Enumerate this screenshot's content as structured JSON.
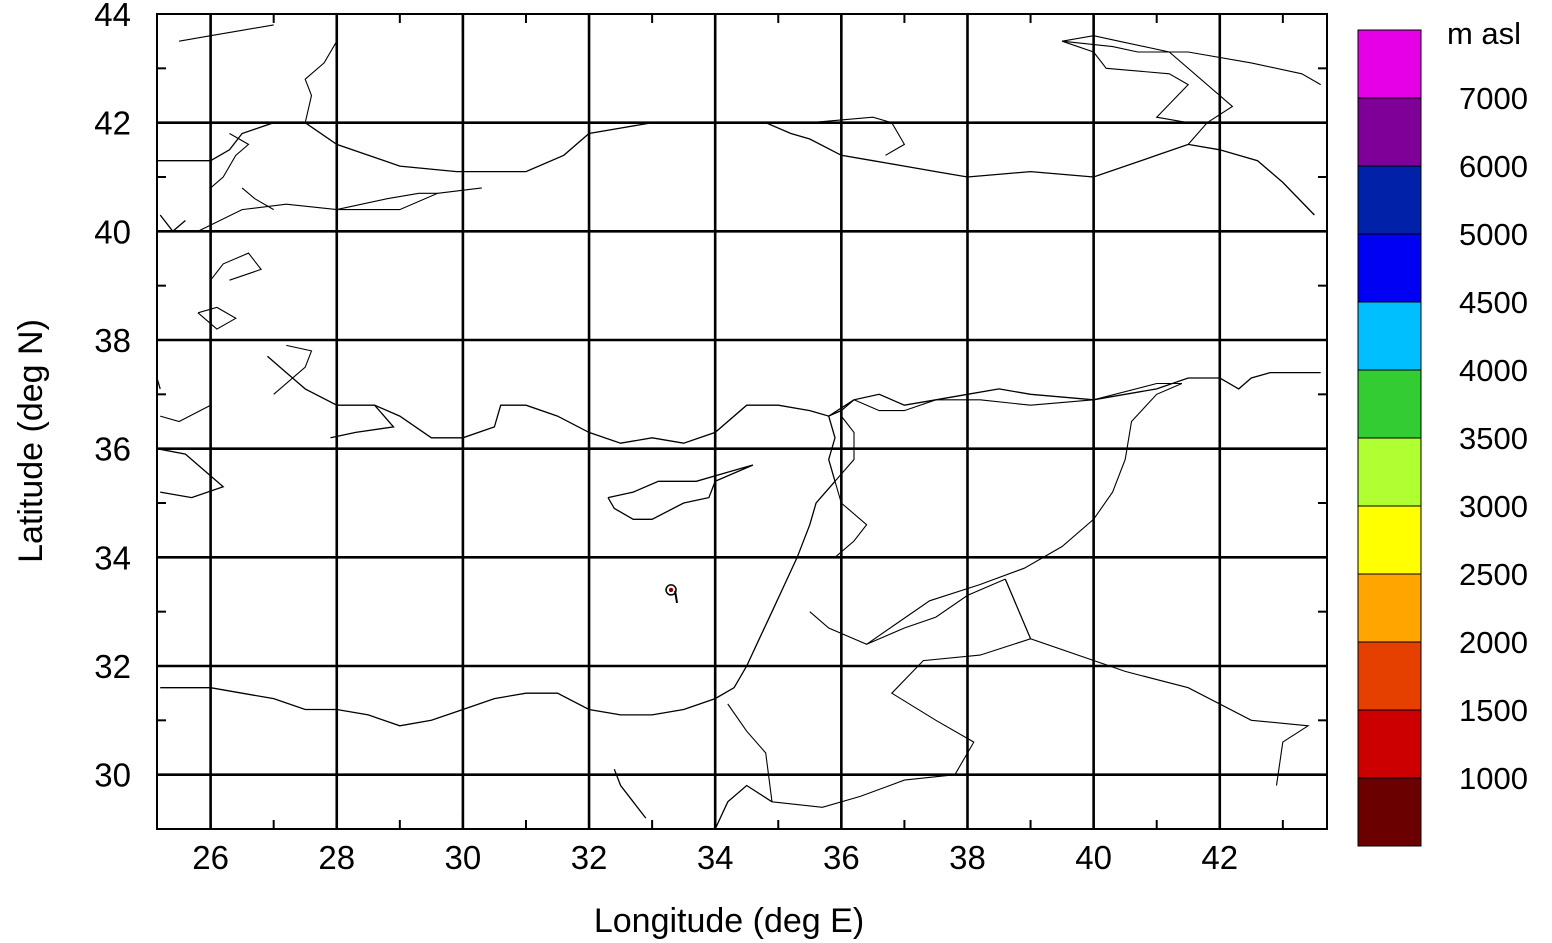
{
  "axes": {
    "xlabel": "Longitude (deg E)",
    "ylabel": "Latitude (deg N)",
    "xlim": [
      25.15,
      43.7
    ],
    "ylim": [
      29.0,
      44.0
    ],
    "x_major_ticks": [
      26,
      28,
      30,
      32,
      34,
      36,
      38,
      40,
      42
    ],
    "y_major_ticks": [
      30,
      32,
      34,
      36,
      38,
      40,
      42,
      44
    ],
    "x_minor_ticks": [
      27,
      29,
      31,
      33,
      35,
      37,
      39,
      41,
      43
    ],
    "y_minor_ticks": [
      31,
      33,
      35,
      37,
      39,
      41,
      43
    ],
    "grid_lons": [
      26,
      28,
      30,
      32,
      34,
      36,
      38,
      40,
      42
    ],
    "grid_lats": [
      30,
      32,
      34,
      36,
      38,
      40,
      42
    ]
  },
  "marker": {
    "lon": 33.3,
    "lat": 33.4,
    "color": "#8b0000"
  },
  "legend": {
    "title": "m asl",
    "labels": [
      "7000",
      "6000",
      "5000",
      "4500",
      "4000",
      "3500",
      "3000",
      "2500",
      "2000",
      "1500",
      "1000"
    ],
    "colors": [
      "#e600e6",
      "#7f0099",
      "#0021a8",
      "#0000f2",
      "#00bfff",
      "#33cc33",
      "#b0ff33",
      "#ffff00",
      "#ffa500",
      "#e64000",
      "#cc0000",
      "#6b0000"
    ]
  },
  "coastlines": [
    [
      [
        25.2,
        40.3
      ],
      [
        25.4,
        40.0
      ],
      [
        25.6,
        40.2
      ]
    ],
    [
      [
        25.1,
        41.3
      ],
      [
        26.0,
        41.3
      ],
      [
        26.3,
        41.5
      ],
      [
        26.5,
        41.8
      ],
      [
        27.0,
        42.0
      ],
      [
        27.5,
        42.0
      ],
      [
        28.0,
        41.6
      ],
      [
        29.0,
        41.2
      ],
      [
        29.9,
        41.1
      ],
      [
        31.0,
        41.1
      ],
      [
        31.6,
        41.4
      ],
      [
        32.0,
        41.8
      ],
      [
        33.0,
        42.0
      ],
      [
        34.0,
        42.0
      ],
      [
        34.8,
        42.0
      ],
      [
        35.2,
        41.8
      ],
      [
        35.5,
        41.7
      ],
      [
        36.0,
        41.4
      ],
      [
        36.5,
        41.3
      ],
      [
        37.0,
        41.2
      ],
      [
        37.5,
        41.1
      ],
      [
        38.0,
        41.0
      ],
      [
        39.0,
        41.1
      ],
      [
        40.0,
        41.0
      ],
      [
        41.0,
        41.4
      ],
      [
        41.5,
        41.6
      ],
      [
        42.0,
        41.5
      ],
      [
        42.6,
        41.3
      ],
      [
        43.0,
        40.9
      ],
      [
        43.5,
        40.3
      ]
    ],
    [
      [
        25.1,
        37.3
      ],
      [
        25.2,
        37.1
      ]
    ],
    [
      [
        26.9,
        37.7
      ],
      [
        27.2,
        37.4
      ],
      [
        27.5,
        37.1
      ],
      [
        28.0,
        36.8
      ],
      [
        28.6,
        36.8
      ],
      [
        29.0,
        36.6
      ],
      [
        29.5,
        36.2
      ],
      [
        30.0,
        36.2
      ],
      [
        30.5,
        36.4
      ],
      [
        30.6,
        36.8
      ],
      [
        31.0,
        36.8
      ],
      [
        31.5,
        36.6
      ],
      [
        32.0,
        36.3
      ],
      [
        32.5,
        36.1
      ],
      [
        33.0,
        36.2
      ],
      [
        33.5,
        36.1
      ],
      [
        34.0,
        36.3
      ],
      [
        34.5,
        36.8
      ],
      [
        35.0,
        36.8
      ],
      [
        35.5,
        36.7
      ],
      [
        35.8,
        36.6
      ],
      [
        36.0,
        36.7
      ],
      [
        36.2,
        36.9
      ],
      [
        36.6,
        37.0
      ],
      [
        37.0,
        36.8
      ],
      [
        37.5,
        36.9
      ],
      [
        38.0,
        37.0
      ],
      [
        38.5,
        37.1
      ],
      [
        39.0,
        37.0
      ],
      [
        40.0,
        36.9
      ],
      [
        41.0,
        37.1
      ],
      [
        41.5,
        37.3
      ],
      [
        42.0,
        37.3
      ],
      [
        42.3,
        37.1
      ],
      [
        42.5,
        37.3
      ],
      [
        42.8,
        37.4
      ],
      [
        43.2,
        37.4
      ],
      [
        43.6,
        37.4
      ]
    ],
    [
      [
        36.2,
        36.9
      ],
      [
        35.8,
        36.6
      ],
      [
        35.9,
        36.2
      ],
      [
        35.8,
        35.8
      ],
      [
        35.9,
        35.4
      ],
      [
        35.6,
        35.0
      ],
      [
        35.5,
        34.6
      ],
      [
        35.3,
        34.0
      ],
      [
        35.1,
        33.5
      ],
      [
        34.9,
        33.0
      ],
      [
        34.7,
        32.5
      ],
      [
        34.5,
        32.0
      ],
      [
        34.3,
        31.6
      ],
      [
        34.0,
        31.4
      ],
      [
        33.5,
        31.2
      ],
      [
        33.0,
        31.1
      ],
      [
        32.5,
        31.1
      ],
      [
        32.0,
        31.2
      ],
      [
        31.5,
        31.5
      ],
      [
        31.0,
        31.5
      ],
      [
        30.5,
        31.4
      ],
      [
        30.0,
        31.2
      ],
      [
        29.5,
        31.0
      ],
      [
        29.0,
        30.9
      ],
      [
        28.5,
        31.1
      ],
      [
        28.0,
        31.2
      ],
      [
        27.5,
        31.2
      ],
      [
        27.0,
        31.4
      ],
      [
        26.5,
        31.5
      ],
      [
        26.0,
        31.6
      ],
      [
        25.2,
        31.6
      ]
    ],
    [
      [
        32.3,
        35.1
      ],
      [
        32.7,
        35.2
      ],
      [
        33.1,
        35.4
      ],
      [
        33.7,
        35.4
      ],
      [
        34.3,
        35.6
      ],
      [
        34.6,
        35.7
      ],
      [
        34.0,
        35.4
      ],
      [
        33.9,
        35.1
      ],
      [
        33.5,
        35.0
      ],
      [
        33.0,
        34.7
      ],
      [
        32.7,
        34.7
      ],
      [
        32.4,
        34.9
      ],
      [
        32.3,
        35.1
      ]
    ],
    [
      [
        32.4,
        30.1
      ],
      [
        32.5,
        29.8
      ],
      [
        32.7,
        29.5
      ],
      [
        32.9,
        29.2
      ]
    ],
    [
      [
        34.0,
        29.0
      ],
      [
        34.2,
        29.5
      ],
      [
        34.5,
        29.8
      ],
      [
        34.9,
        29.5
      ]
    ],
    [
      [
        25.1,
        36.0
      ],
      [
        25.6,
        35.9
      ],
      [
        26.2,
        35.3
      ],
      [
        25.7,
        35.1
      ],
      [
        25.2,
        35.2
      ]
    ],
    [
      [
        28.6,
        36.8
      ],
      [
        28.9,
        36.4
      ],
      [
        28.3,
        36.3
      ],
      [
        27.9,
        36.2
      ]
    ]
  ],
  "borders": [
    [
      [
        38.6,
        33.6
      ],
      [
        39.0,
        32.5
      ],
      [
        40.5,
        31.9
      ],
      [
        41.5,
        31.6
      ],
      [
        42.5,
        31.0
      ],
      [
        43.4,
        30.9
      ],
      [
        43.0,
        30.6
      ],
      [
        42.9,
        29.8
      ]
    ],
    [
      [
        38.6,
        33.6
      ],
      [
        38.0,
        33.3
      ],
      [
        37.5,
        32.9
      ],
      [
        37.0,
        32.7
      ],
      [
        36.4,
        32.4
      ],
      [
        35.8,
        32.7
      ],
      [
        35.5,
        33.0
      ]
    ],
    [
      [
        36.2,
        36.9
      ],
      [
        36.6,
        36.7
      ],
      [
        37.0,
        36.7
      ],
      [
        37.5,
        36.9
      ],
      [
        38.2,
        36.9
      ],
      [
        39.0,
        36.8
      ],
      [
        40.0,
        36.9
      ],
      [
        41.0,
        37.2
      ],
      [
        41.4,
        37.2
      ]
    ],
    [
      [
        41.4,
        37.2
      ],
      [
        41.0,
        37.0
      ],
      [
        40.6,
        36.5
      ],
      [
        40.5,
        35.8
      ],
      [
        40.3,
        35.2
      ],
      [
        40.0,
        34.7
      ],
      [
        39.5,
        34.2
      ],
      [
        38.9,
        33.8
      ],
      [
        38.2,
        33.5
      ],
      [
        37.4,
        33.2
      ],
      [
        36.9,
        32.8
      ],
      [
        36.4,
        32.4
      ]
    ],
    [
      [
        38.6,
        33.6
      ],
      [
        39.0,
        32.5
      ],
      [
        38.2,
        32.2
      ],
      [
        37.3,
        32.1
      ],
      [
        36.8,
        31.5
      ],
      [
        37.5,
        31.0
      ],
      [
        38.1,
        30.6
      ],
      [
        37.8,
        30.0
      ],
      [
        37.0,
        29.9
      ],
      [
        36.3,
        29.6
      ],
      [
        35.7,
        29.4
      ],
      [
        34.9,
        29.5
      ]
    ],
    [
      [
        34.2,
        31.3
      ],
      [
        34.5,
        30.8
      ],
      [
        34.8,
        30.4
      ],
      [
        34.9,
        29.5
      ]
    ],
    [
      [
        35.9,
        34.0
      ],
      [
        36.2,
        34.3
      ],
      [
        36.4,
        34.6
      ],
      [
        36.0,
        35.0
      ],
      [
        35.9,
        35.4
      ],
      [
        36.2,
        35.8
      ],
      [
        36.2,
        36.3
      ],
      [
        36.0,
        36.6
      ]
    ],
    [
      [
        36.7,
        41.4
      ],
      [
        37.0,
        41.6
      ],
      [
        36.8,
        42.0
      ],
      [
        36.5,
        42.1
      ],
      [
        35.5,
        42.0
      ]
    ],
    [
      [
        41.5,
        41.6
      ],
      [
        41.8,
        42.0
      ],
      [
        42.2,
        42.3
      ],
      [
        41.2,
        43.3
      ],
      [
        40.4,
        43.5
      ],
      [
        40.0,
        43.6
      ],
      [
        39.5,
        43.5
      ]
    ],
    [
      [
        39.5,
        43.5
      ],
      [
        40.3,
        43.4
      ],
      [
        40.7,
        43.3
      ],
      [
        41.5,
        43.3
      ],
      [
        42.5,
        43.1
      ],
      [
        43.3,
        42.9
      ],
      [
        43.6,
        42.7
      ]
    ],
    [
      [
        39.5,
        43.5
      ],
      [
        40.0,
        43.3
      ],
      [
        40.2,
        43.0
      ],
      [
        41.2,
        42.9
      ],
      [
        41.5,
        42.7
      ],
      [
        41.0,
        42.1
      ],
      [
        41.5,
        42.0
      ]
    ],
    [
      [
        25.5,
        43.5
      ],
      [
        26.0,
        43.6
      ],
      [
        26.5,
        43.7
      ],
      [
        27.0,
        43.8
      ]
    ],
    [
      [
        28.0,
        43.9
      ],
      [
        28.0,
        43.5
      ],
      [
        27.8,
        43.1
      ],
      [
        27.5,
        42.8
      ],
      [
        27.6,
        42.5
      ],
      [
        27.5,
        42.0
      ]
    ],
    [
      [
        25.8,
        40.0
      ],
      [
        26.5,
        40.4
      ],
      [
        27.2,
        40.5
      ],
      [
        28.0,
        40.4
      ],
      [
        29.0,
        40.4
      ],
      [
        29.6,
        40.7
      ],
      [
        30.3,
        40.8
      ]
    ],
    [
      [
        28.0,
        40.4
      ],
      [
        28.8,
        40.6
      ],
      [
        29.3,
        40.7
      ],
      [
        29.6,
        40.7
      ]
    ],
    [
      [
        26.3,
        39.1
      ],
      [
        26.8,
        39.3
      ],
      [
        26.6,
        39.6
      ],
      [
        26.2,
        39.4
      ],
      [
        26.0,
        39.1
      ]
    ],
    [
      [
        25.8,
        38.5
      ],
      [
        26.1,
        38.6
      ],
      [
        26.4,
        38.4
      ],
      [
        26.1,
        38.2
      ],
      [
        25.8,
        38.5
      ]
    ],
    [
      [
        27.0,
        37.0
      ],
      [
        27.5,
        37.5
      ],
      [
        27.6,
        37.8
      ],
      [
        27.2,
        37.9
      ]
    ],
    [
      [
        26.0,
        36.8
      ],
      [
        25.5,
        36.5
      ],
      [
        25.2,
        36.6
      ]
    ],
    [
      [
        26.5,
        40.8
      ],
      [
        26.7,
        40.6
      ],
      [
        27.0,
        40.4
      ]
    ],
    [
      [
        26.3,
        41.8
      ],
      [
        26.6,
        41.6
      ],
      [
        26.4,
        41.4
      ],
      [
        26.2,
        41.0
      ],
      [
        26.0,
        40.8
      ]
    ]
  ]
}
